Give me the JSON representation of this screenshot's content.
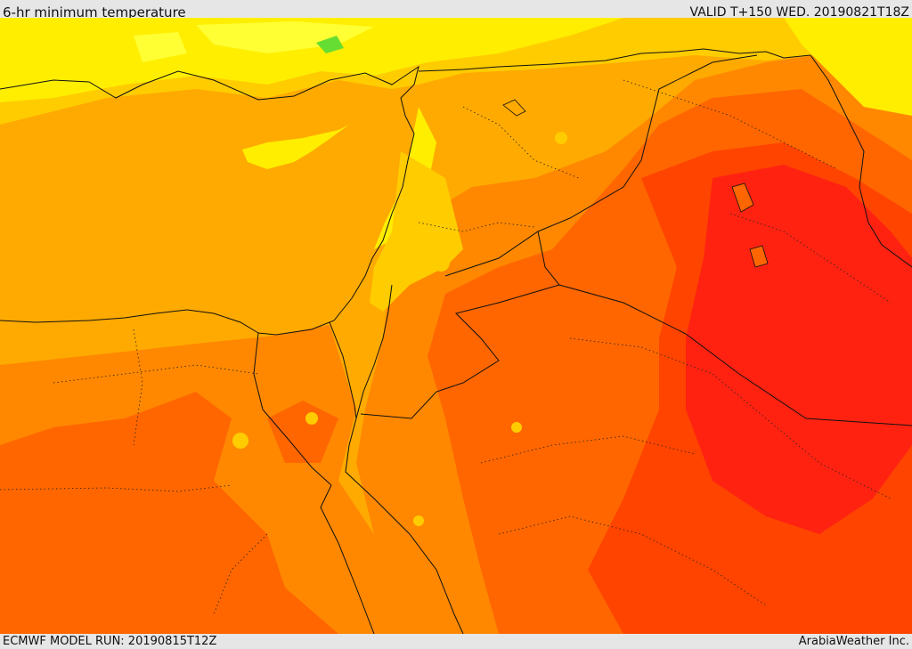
{
  "header": {
    "title": "6-hr minimum temperature",
    "valid_time": "VALID T+150 WED. 20190821T18Z"
  },
  "footer": {
    "model_run": "ECMWF MODEL RUN: 20190815T12Z",
    "credit": "ArabiaWeather Inc."
  },
  "map": {
    "palette": {
      "light_yellow": "#ffff33",
      "yellow": "#ffee00",
      "gold": "#ffcc00",
      "amber": "#ffaa00",
      "orange": "#ff8800",
      "dark_orange": "#ff6600",
      "red_orange": "#ff4400",
      "red": "#ff2211",
      "green": "#66dd33"
    },
    "border_color": "#111111"
  }
}
